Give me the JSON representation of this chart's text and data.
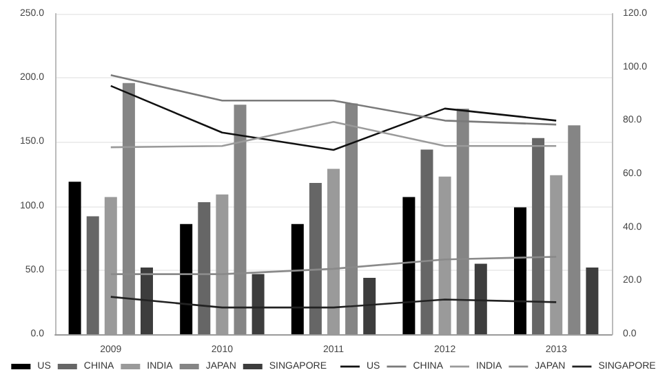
{
  "chart_data": {
    "type": "bar",
    "categories": [
      "2009",
      "2010",
      "2011",
      "2012",
      "2013"
    ],
    "series": [
      {
        "name": "US",
        "color": "#000000",
        "values": [
          119,
          86,
          86,
          107,
          99
        ]
      },
      {
        "name": "CHINA",
        "color": "#666666",
        "values": [
          92,
          103,
          118,
          144,
          153
        ]
      },
      {
        "name": "INDIA",
        "color": "#9a9a9a",
        "values": [
          107,
          109,
          129,
          123,
          124
        ]
      },
      {
        "name": "JAPAN",
        "color": "#858585",
        "values": [
          196,
          179,
          180,
          176,
          163
        ]
      },
      {
        "name": "SINGAPORE",
        "color": "#3d3d3d",
        "values": [
          52,
          47,
          44,
          55,
          52
        ]
      },
      {
        "name": "US",
        "type": "line",
        "axis": "y2",
        "color": "#111111",
        "values": [
          93,
          75.5,
          69,
          84.5,
          80
        ]
      },
      {
        "name": "CHINA",
        "type": "line",
        "axis": "y2",
        "color": "#7a7a7a",
        "values": [
          97,
          87.5,
          87.5,
          80,
          78.5
        ]
      },
      {
        "name": "INDIA",
        "type": "line",
        "axis": "y2",
        "color": "#9a9a9a",
        "values": [
          70,
          70.5,
          79.5,
          70.5,
          70.5
        ]
      },
      {
        "name": "JAPAN",
        "type": "line",
        "axis": "y2",
        "color": "#8a8a8a",
        "values": [
          22.5,
          22.5,
          24.5,
          28,
          29
        ]
      },
      {
        "name": "SINGAPORE",
        "type": "line",
        "axis": "y2",
        "color": "#222222",
        "values": [
          14,
          10,
          10,
          13,
          12
        ]
      }
    ],
    "ylim": [
      0,
      250
    ],
    "yticks": [
      {
        "value": 0,
        "label": "0.0"
      },
      {
        "value": 50,
        "label": "50.0"
      },
      {
        "value": 100,
        "label": "100.0"
      },
      {
        "value": 150,
        "label": "150.0"
      },
      {
        "value": 200,
        "label": "200.0"
      },
      {
        "value": 250,
        "label": "250.0"
      }
    ],
    "y2lim": [
      0,
      120
    ],
    "y2ticks": [
      {
        "value": 0,
        "label": "0.0"
      },
      {
        "value": 20,
        "label": "20.0"
      },
      {
        "value": 40,
        "label": "40.0"
      },
      {
        "value": 60,
        "label": "60.0"
      },
      {
        "value": 80,
        "label": "80.0"
      },
      {
        "value": 100,
        "label": "100.0"
      },
      {
        "value": 120,
        "label": "120.0"
      }
    ],
    "grid": "y",
    "legend": "bottom",
    "marker": "none"
  }
}
